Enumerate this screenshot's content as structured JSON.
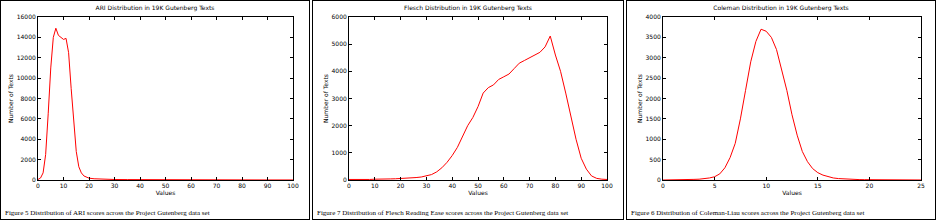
{
  "chart_data": [
    {
      "type": "line",
      "title": "ARI Distribution in 19K Gutenberg Texts",
      "x_label": "Values",
      "y_label": "Number of Texts",
      "caption": "Figure 5 Distribution of ARI scores across the Project Gutenberg data set",
      "color": "#ff0000",
      "grid": false,
      "x": [
        0,
        1,
        2,
        3,
        4,
        5,
        6,
        7,
        8,
        9,
        10,
        11,
        12,
        13,
        14,
        15,
        16,
        17,
        18,
        19,
        20,
        22,
        25,
        30,
        35,
        40,
        50,
        60,
        70,
        80,
        90,
        100
      ],
      "values": [
        50,
        200,
        700,
        2500,
        6500,
        11000,
        14000,
        14900,
        14200,
        14000,
        13800,
        13900,
        12500,
        9000,
        5500,
        2800,
        1300,
        700,
        400,
        250,
        180,
        120,
        80,
        50,
        40,
        30,
        20,
        15,
        10,
        8,
        5,
        5
      ],
      "xlim": [
        0,
        100
      ],
      "xticks": [
        0,
        10,
        20,
        30,
        40,
        50,
        60,
        70,
        80,
        90,
        100
      ],
      "ylim": [
        0,
        16000
      ],
      "yticks": [
        0,
        2000,
        4000,
        6000,
        8000,
        10000,
        12000,
        14000,
        16000
      ]
    },
    {
      "type": "line",
      "title": "Flesch Distribution in 19K Gutenberg Texts",
      "x_label": "Values",
      "y_label": "Number of Texts",
      "caption": "Figure 7 Distribution of Flesch Reading Ease scores across the Project Gutenberg data set",
      "color": "#ff0000",
      "grid": false,
      "x": [
        0,
        2,
        4,
        6,
        8,
        10,
        12,
        14,
        16,
        18,
        20,
        22,
        24,
        26,
        28,
        30,
        32,
        34,
        36,
        38,
        40,
        42,
        44,
        46,
        48,
        50,
        52,
        54,
        56,
        58,
        60,
        62,
        64,
        66,
        68,
        70,
        72,
        74,
        76,
        78,
        80,
        82,
        84,
        86,
        88,
        90,
        92,
        94,
        96,
        98,
        100
      ],
      "values": [
        20,
        15,
        20,
        25,
        20,
        30,
        25,
        30,
        40,
        45,
        50,
        60,
        70,
        90,
        110,
        150,
        200,
        300,
        450,
        650,
        900,
        1200,
        1600,
        2000,
        2300,
        2700,
        3200,
        3400,
        3500,
        3700,
        3800,
        3900,
        4100,
        4300,
        4400,
        4500,
        4600,
        4700,
        4900,
        5300,
        4600,
        4000,
        3200,
        2300,
        1500,
        800,
        400,
        150,
        60,
        30,
        20
      ],
      "xlim": [
        0,
        100
      ],
      "xticks": [
        0,
        10,
        20,
        30,
        40,
        50,
        60,
        70,
        80,
        90,
        100
      ],
      "ylim": [
        0,
        6000
      ],
      "yticks": [
        0,
        1000,
        2000,
        3000,
        4000,
        5000,
        6000
      ]
    },
    {
      "type": "line",
      "title": "Coleman Distribution in 19K Gutenberg Texts",
      "x_label": "Values",
      "y_label": "Number of Texts",
      "caption": "Figure 6 Distribution of Coleman-Liau scores across the Project Gutenberg data set",
      "color": "#ff0000",
      "grid": false,
      "x": [
        0,
        0.5,
        1,
        1.5,
        2,
        2.5,
        3,
        3.5,
        4,
        4.5,
        5,
        5.5,
        6,
        6.5,
        7,
        7.5,
        8,
        8.5,
        9,
        9.5,
        10,
        10.5,
        11,
        11.5,
        12,
        12.5,
        13,
        13.5,
        14,
        14.5,
        15,
        15.5,
        16,
        16.5,
        17,
        17.5,
        18,
        18.5,
        19,
        19.5,
        20,
        20.5,
        21,
        21.5,
        22,
        22.5,
        23,
        23.5,
        24,
        24.5,
        25
      ],
      "values": [
        0,
        0,
        5,
        5,
        10,
        10,
        15,
        20,
        30,
        50,
        80,
        150,
        300,
        550,
        900,
        1500,
        2200,
        2900,
        3400,
        3700,
        3650,
        3500,
        3200,
        2700,
        2200,
        1600,
        1100,
        700,
        450,
        280,
        180,
        120,
        80,
        50,
        35,
        25,
        20,
        15,
        10,
        8,
        6,
        5,
        4,
        3,
        3,
        2,
        2,
        2,
        1,
        1,
        1
      ],
      "xlim": [
        0,
        25
      ],
      "xticks": [
        0,
        5,
        10,
        15,
        20,
        25
      ],
      "ylim": [
        0,
        4000
      ],
      "yticks": [
        0,
        500,
        1000,
        1500,
        2000,
        2500,
        3000,
        3500,
        4000
      ]
    }
  ]
}
